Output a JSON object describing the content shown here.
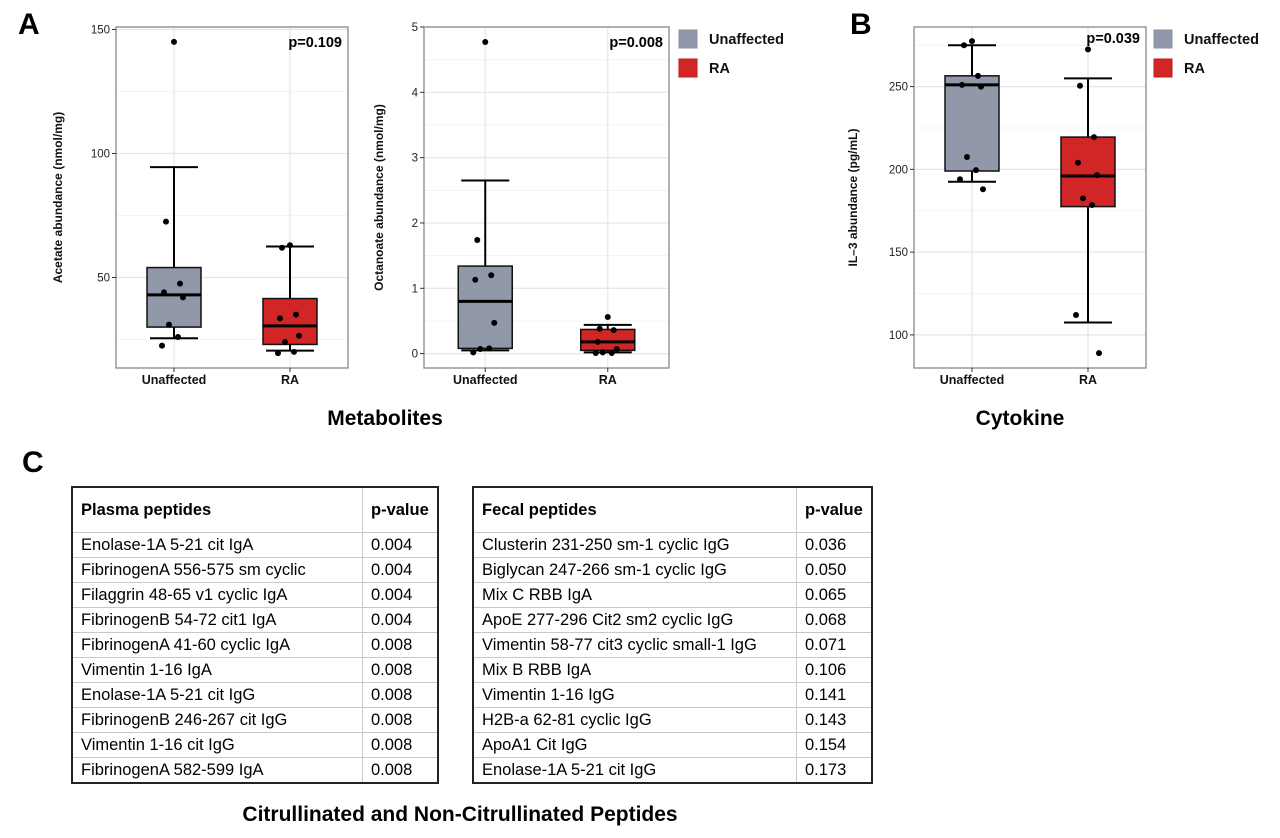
{
  "panels": {
    "A": {
      "letter": "A",
      "section_title": "Metabolites"
    },
    "B": {
      "letter": "B",
      "section_title": "Cytokine"
    },
    "C": {
      "letter": "C",
      "section_title": "Citrullinated and Non-Citrullinated Peptides"
    }
  },
  "legend": {
    "items": [
      {
        "label": "Unaffected",
        "color": "#9198aa"
      },
      {
        "label": "RA",
        "color": "#d22626"
      }
    ]
  },
  "chart_data": [
    {
      "type": "box",
      "id": "acetate",
      "title": "",
      "ylabel": "Acetate abundance (nmol/mg)",
      "xlabel": "",
      "categories": [
        "Unaffected",
        "RA"
      ],
      "ylim": [
        13.5,
        151
      ],
      "yticks": [
        50,
        100,
        150
      ],
      "grid": true,
      "annotation": "p=0.109",
      "boxes": [
        {
          "group": "Unaffected",
          "whisker_low": 25.5,
          "q1": 30,
          "median": 43,
          "q3": 54,
          "whisker_high": 94.5,
          "color": "#9198aa",
          "points": [
            145,
            72.5,
            47.5,
            44,
            42,
            31,
            26,
            22.5
          ]
        },
        {
          "group": "RA",
          "whisker_low": 20.5,
          "q1": 23,
          "median": 30.5,
          "q3": 41.5,
          "whisker_high": 62.5,
          "color": "#d22626",
          "points": [
            63,
            62,
            35,
            33.5,
            26.5,
            24,
            20,
            19.5
          ]
        }
      ]
    },
    {
      "type": "box",
      "id": "octanoate",
      "title": "",
      "ylabel": "Octanoate abundance (nmol/mg)",
      "xlabel": "",
      "categories": [
        "Unaffected",
        "RA"
      ],
      "ylim": [
        -0.22,
        5.0
      ],
      "yticks": [
        0,
        1,
        2,
        3,
        4,
        5
      ],
      "grid": true,
      "annotation": "p=0.008",
      "boxes": [
        {
          "group": "Unaffected",
          "whisker_low": 0.05,
          "q1": 0.08,
          "median": 0.8,
          "q3": 1.34,
          "whisker_high": 2.65,
          "color": "#9198aa",
          "points": [
            4.77,
            1.74,
            1.2,
            1.13,
            0.47,
            0.07,
            0.08,
            0.02
          ]
        },
        {
          "group": "RA",
          "whisker_low": 0.02,
          "q1": 0.05,
          "median": 0.18,
          "q3": 0.37,
          "whisker_high": 0.44,
          "color": "#d22626",
          "points": [
            0.56,
            0.38,
            0.36,
            0.18,
            0.07,
            0.02,
            0.01,
            0.01
          ]
        }
      ]
    },
    {
      "type": "box",
      "id": "il3",
      "title": "",
      "ylabel": "IL–3 abundance (pg/mL)",
      "xlabel": "",
      "categories": [
        "Unaffected",
        "RA"
      ],
      "ylim": [
        80,
        286
      ],
      "yticks": [
        100,
        150,
        200,
        250
      ],
      "grid": true,
      "annotation": "p=0.039",
      "boxes": [
        {
          "group": "Unaffected",
          "whisker_low": 192.5,
          "q1": 199,
          "median": 251,
          "q3": 256.5,
          "whisker_high": 275,
          "color": "#9198aa",
          "points": [
            277.5,
            275,
            256.5,
            251,
            250,
            207.5,
            199.5,
            194,
            188
          ]
        },
        {
          "group": "RA",
          "whisker_low": 107.5,
          "q1": 177.5,
          "median": 196,
          "q3": 219.5,
          "whisker_high": 255,
          "color": "#d22626",
          "points": [
            272.5,
            250.5,
            219.5,
            204,
            196.5,
            182.5,
            178.5,
            112,
            89
          ]
        }
      ]
    }
  ],
  "tables": {
    "plasma": {
      "headers": [
        "Plasma peptides",
        "p-value"
      ],
      "rows": [
        [
          "Enolase-1A 5-21 cit IgA",
          "0.004"
        ],
        [
          "FibrinogenA 556-575 sm cyclic",
          "0.004"
        ],
        [
          "Filaggrin 48-65 v1 cyclic IgA",
          "0.004"
        ],
        [
          "FibrinogenB 54-72 cit1 IgA",
          "0.004"
        ],
        [
          "FibrinogenA 41-60 cyclic IgA",
          "0.008"
        ],
        [
          "Vimentin 1-16 IgA",
          "0.008"
        ],
        [
          "Enolase-1A 5-21 cit IgG",
          "0.008"
        ],
        [
          "FibrinogenB 246-267 cit IgG",
          "0.008"
        ],
        [
          "Vimentin 1-16 cit IgG",
          "0.008"
        ],
        [
          "FibrinogenA 582-599 IgA",
          "0.008"
        ]
      ]
    },
    "fecal": {
      "headers": [
        "Fecal peptides",
        "p-value"
      ],
      "rows": [
        [
          "Clusterin 231-250 sm-1 cyclic IgG",
          "0.036"
        ],
        [
          "Biglycan 247-266 sm-1 cyclic IgG",
          "0.050"
        ],
        [
          "Mix C RBB IgA",
          "0.065"
        ],
        [
          "ApoE 277-296 Cit2 sm2 cyclic IgG",
          "0.068"
        ],
        [
          "Vimentin 58-77 cit3 cyclic small-1 IgG",
          "0.071"
        ],
        [
          "Mix B RBB IgA",
          "0.106"
        ],
        [
          "Vimentin 1-16 IgG",
          "0.141"
        ],
        [
          "H2B-a 62-81 cyclic IgG",
          "0.143"
        ],
        [
          "ApoA1 Cit IgG",
          "0.154"
        ],
        [
          "Enolase-1A 5-21 cit IgG",
          "0.173"
        ]
      ]
    }
  }
}
